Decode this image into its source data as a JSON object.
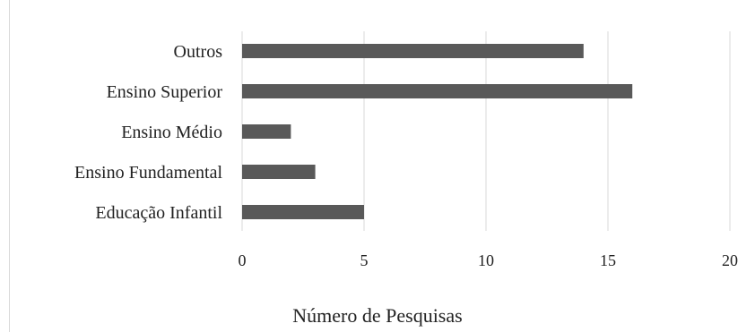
{
  "chart_data": {
    "type": "bar",
    "orientation": "horizontal",
    "categories": [
      "Outros",
      "Ensino Superior",
      "Ensino Médio",
      "Ensino Fundamental",
      "Educação Infantil"
    ],
    "values": [
      14,
      16,
      2,
      3,
      5
    ],
    "xlabel": "Número de Pesquisas",
    "xlim": [
      0,
      20
    ],
    "xticks": [
      0,
      5,
      10,
      15,
      20
    ],
    "grid": "vertical",
    "bar_color": "#595959",
    "grid_color": "#d9d9d9",
    "text_color": "#222222"
  }
}
